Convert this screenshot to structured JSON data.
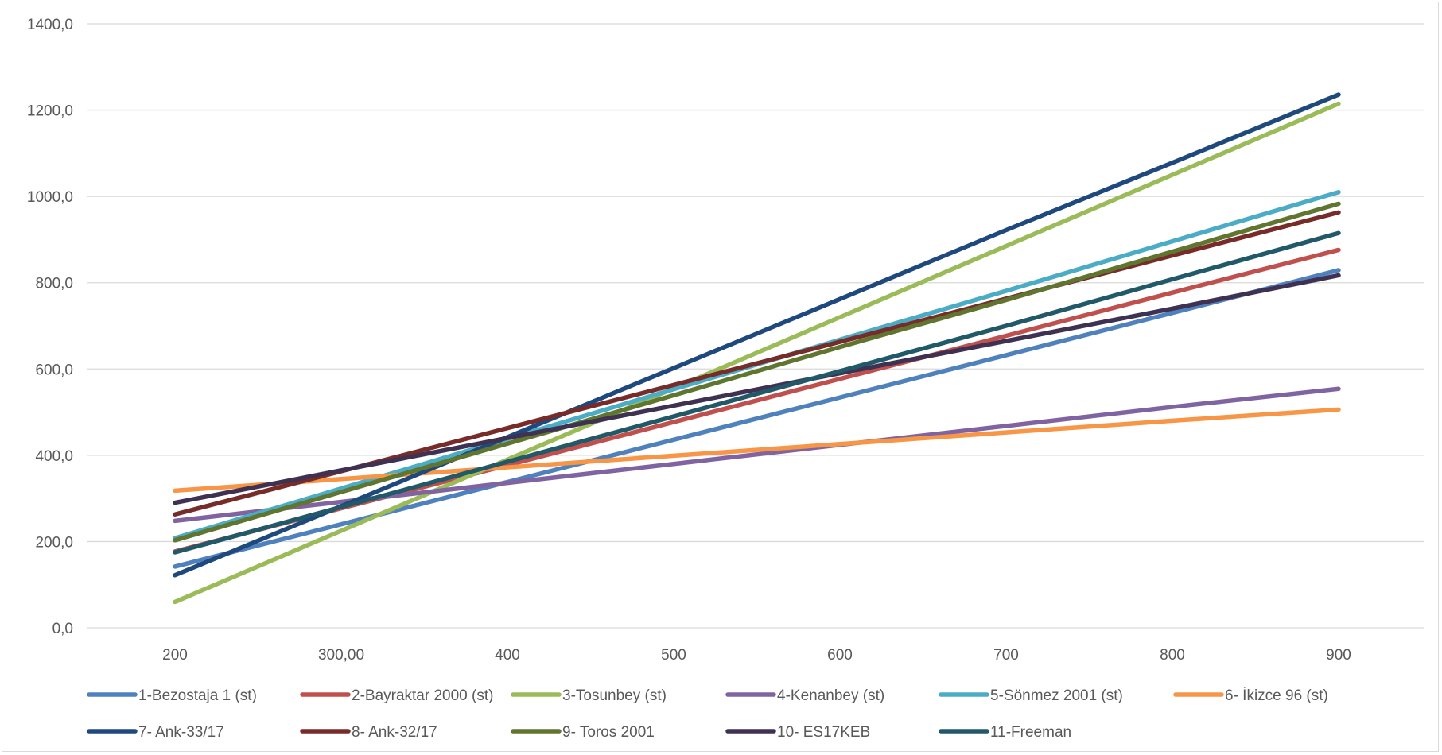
{
  "chart_data": {
    "type": "line",
    "title": "",
    "xlabel": "",
    "ylabel": "",
    "categories": [
      "200",
      "300,00",
      "400",
      "500",
      "600",
      "700",
      "800",
      "900"
    ],
    "x": [
      200,
      300,
      400,
      500,
      600,
      700,
      800,
      900
    ],
    "ylim": [
      0,
      1400
    ],
    "yticks": [
      0,
      200,
      400,
      600,
      800,
      1000,
      1200,
      1400
    ],
    "ytick_labels": [
      "0,0",
      "200,0",
      "400,0",
      "600,0",
      "800,0",
      "1000,0",
      "1200,0",
      "1400,0"
    ],
    "grid": "horizontal",
    "legend_position": "bottom",
    "series": [
      {
        "name": "1-Bezostaja 1 (st)",
        "color": "#4f81bd",
        "values": [
          142,
          240,
          338,
          436,
          534,
          632,
          730,
          829
        ]
      },
      {
        "name": "2-Bayraktar 2000 (st)",
        "color": "#c0504d",
        "values": [
          177,
          277,
          377,
          477,
          577,
          677,
          777,
          876
        ]
      },
      {
        "name": "3-Tosunbey (st)",
        "color": "#9bbb59",
        "values": [
          60,
          225,
          390,
          555,
          720,
          885,
          1050,
          1215
        ]
      },
      {
        "name": "4-Kenanbey (st)",
        "color": "#8064a2",
        "values": [
          248,
          292,
          336,
          380,
          424,
          468,
          512,
          554
        ]
      },
      {
        "name": "5-Sönmez 2001 (st)",
        "color": "#4bacc6",
        "values": [
          208,
          323,
          438,
          553,
          668,
          781,
          896,
          1010
        ]
      },
      {
        "name": "6- İkizce 96 (st)",
        "color": "#f79646",
        "values": [
          318,
          345,
          372,
          399,
          426,
          453,
          480,
          506
        ]
      },
      {
        "name": "7- Ank-33/17",
        "color": "#1f497d",
        "values": [
          122,
          282,
          442,
          602,
          762,
          922,
          1078,
          1236
        ]
      },
      {
        "name": "8- Ank-32/17",
        "color": "#772c2a",
        "values": [
          263,
          363,
          463,
          563,
          663,
          763,
          863,
          963
        ]
      },
      {
        "name": "9- Toros 2001",
        "color": "#5f7530",
        "values": [
          203,
          315,
          427,
          539,
          651,
          760,
          872,
          983
        ]
      },
      {
        "name": "10- ES17KEB",
        "color": "#3f3151",
        "values": [
          290,
          365,
          440,
          515,
          590,
          665,
          740,
          817
        ]
      },
      {
        "name": "11-Freeman",
        "color": "#215968",
        "values": [
          175,
          280,
          385,
          490,
          595,
          700,
          808,
          915
        ]
      }
    ]
  }
}
